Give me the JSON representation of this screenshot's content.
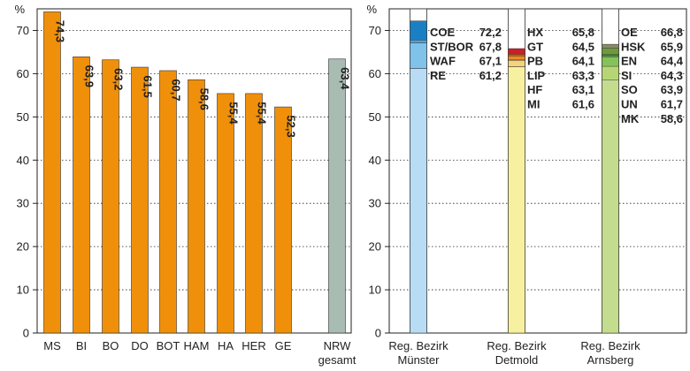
{
  "chart_data": [
    {
      "type": "bar",
      "ylabel": "%",
      "ylim": [
        0,
        75
      ],
      "yticks": [
        0,
        10,
        20,
        30,
        40,
        50,
        60,
        70
      ],
      "grid": true,
      "categories": [
        "MS",
        "BI",
        "BO",
        "DO",
        "BOT",
        "HAM",
        "HA",
        "HER",
        "GE",
        "NRW gesamt"
      ],
      "category_lines": [
        [
          "MS"
        ],
        [
          "BI"
        ],
        [
          "BO"
        ],
        [
          "DO"
        ],
        [
          "BOT"
        ],
        [
          "HAM"
        ],
        [
          "HA"
        ],
        [
          "HER"
        ],
        [
          "GE"
        ],
        [
          "NRW",
          "gesamt"
        ]
      ],
      "values": [
        74.3,
        63.9,
        63.2,
        61.5,
        60.7,
        58.6,
        55.4,
        55.4,
        52.3,
        63.4
      ],
      "value_labels": [
        "74,3",
        "63,9",
        "63,2",
        "61,5",
        "60,7",
        "58,6",
        "55,4",
        "55,4",
        "52,3",
        "63,4"
      ],
      "colors": [
        "#f0900a",
        "#f0900a",
        "#f0900a",
        "#f0900a",
        "#f0900a",
        "#f0900a",
        "#f0900a",
        "#f0900a",
        "#f0900a",
        "#a9bcb3"
      ]
    },
    {
      "type": "bar",
      "stacked": "overlapping",
      "ylabel": "%",
      "ylim": [
        0,
        75
      ],
      "yticks": [
        0,
        10,
        20,
        30,
        40,
        50,
        60,
        70
      ],
      "grid": true,
      "groups": [
        {
          "label_lines": [
            "Reg. Bezirk",
            "Münster"
          ],
          "base_color": "#b8dcf4",
          "entries": [
            {
              "name": "COE",
              "value": 72.2,
              "label": "72,2",
              "color": "#1b7fc4"
            },
            {
              "name": "ST/BOR",
              "value": 67.8,
              "label": "67,8",
              "color": "#4ea3d9"
            },
            {
              "name": "WAF",
              "value": 67.1,
              "label": "67,1",
              "color": "#80c2ea"
            },
            {
              "name": "RE",
              "value": 61.2,
              "label": "61,2",
              "color": "#b8dcf4"
            }
          ]
        },
        {
          "label_lines": [
            "Reg. Bezirk",
            "Detmold"
          ],
          "base_color": "#f7f0a0",
          "entries": [
            {
              "name": "HX",
              "value": 65.8,
              "label": "65,8",
              "color": "#c8202a"
            },
            {
              "name": "GT",
              "value": 64.5,
              "label": "64,5",
              "color": "#e2501c"
            },
            {
              "name": "PB",
              "value": 64.1,
              "label": "64,1",
              "color": "#f08a1c"
            },
            {
              "name": "LIP",
              "value": 63.3,
              "label": "63,3",
              "color": "#f6b84a"
            },
            {
              "name": "HF",
              "value": 63.1,
              "label": "63,1",
              "color": "#f6d27a"
            },
            {
              "name": "MI",
              "value": 61.6,
              "label": "61,6",
              "color": "#f7f0a0"
            }
          ]
        },
        {
          "label_lines": [
            "Reg. Bezirk",
            "Arnsberg"
          ],
          "base_color": "#c4dc8e",
          "entries": [
            {
              "name": "OE",
              "value": 66.8,
              "label": "66,8",
              "color": "#8a8a6a"
            },
            {
              "name": "HSK",
              "value": 65.9,
              "label": "65,9",
              "color": "#6f9a3a"
            },
            {
              "name": "EN",
              "value": 64.4,
              "label": "64,4",
              "color": "#2f8a4a"
            },
            {
              "name": "SI",
              "value": 64.3,
              "label": "64,3",
              "color": "#4aa04e"
            },
            {
              "name": "SO",
              "value": 63.9,
              "label": "63,9",
              "color": "#86c25a"
            },
            {
              "name": "UN",
              "value": 61.7,
              "label": "61,7",
              "color": "#b6d676"
            },
            {
              "name": "MK",
              "value": 58.6,
              "label": "58,6",
              "color": "#c4dc8e"
            }
          ]
        }
      ]
    }
  ]
}
